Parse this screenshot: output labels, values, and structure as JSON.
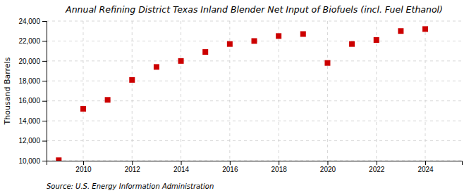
{
  "chart_data": {
    "type": "scatter",
    "title": "Annual Refining District Texas Inland Blender Net Input of Biofuels (incl. Fuel Ethanol)",
    "ylabel": "Thousand Barrels",
    "source": "Source: U.S. Energy Information Administration",
    "x": [
      2009,
      2010,
      2011,
      2012,
      2013,
      2014,
      2015,
      2016,
      2017,
      2018,
      2019,
      2020,
      2021,
      2022,
      2023,
      2024
    ],
    "values": [
      10050,
      15200,
      16100,
      18100,
      19400,
      20000,
      20900,
      21700,
      22000,
      22500,
      22700,
      19800,
      21700,
      22100,
      23000,
      23200
    ],
    "color": "#cc0000",
    "marker": "square",
    "grid": true,
    "xlim": [
      2008.5,
      2025.5
    ],
    "xticks": [
      2010,
      2012,
      2014,
      2016,
      2018,
      2020,
      2022,
      2024
    ],
    "ylim": [
      10000,
      24000
    ],
    "yticks": [
      {
        "value": 10000,
        "label": "10,000"
      },
      {
        "value": 12000,
        "label": "12,000"
      },
      {
        "value": 14000,
        "label": "14,000"
      },
      {
        "value": 16000,
        "label": "16,000"
      },
      {
        "value": 18000,
        "label": "18,000"
      },
      {
        "value": 20000,
        "label": "20,000"
      },
      {
        "value": 22000,
        "label": "22,000"
      },
      {
        "value": 24000,
        "label": "24,000"
      }
    ]
  }
}
